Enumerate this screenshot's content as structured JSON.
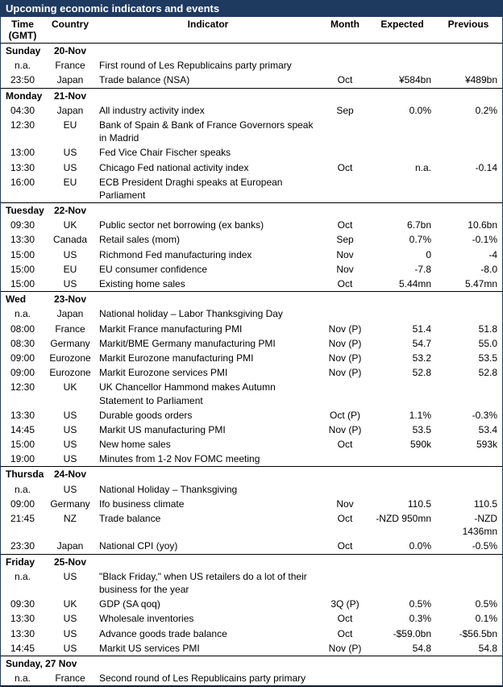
{
  "title": "Upcoming economic indicators and events",
  "columns": {
    "time": "Time (GMT)",
    "country": "Country",
    "indicator": "Indicator",
    "month": "Month",
    "expected": "Expected",
    "previous": "Previous"
  },
  "days": [
    {
      "day_label": "Sunday",
      "date_label": "20-Nov",
      "rows": [
        {
          "time": "n.a.",
          "country": "France",
          "indicator": "First round of Les Republicains party primary",
          "month": "",
          "expected": "",
          "previous": ""
        },
        {
          "time": "23:50",
          "country": "Japan",
          "indicator": "Trade balance (NSA)",
          "month": "Oct",
          "expected": "¥584bn",
          "previous": "¥489bn"
        }
      ]
    },
    {
      "day_label": "Monday",
      "date_label": "21-Nov",
      "rows": [
        {
          "time": "04:30",
          "country": "Japan",
          "indicator": "All industry activity index",
          "month": "Sep",
          "expected": "0.0%",
          "previous": "0.2%"
        },
        {
          "time": "12:30",
          "country": "EU",
          "indicator": "Bank of Spain & Bank of France Governors speak in Madrid",
          "month": "",
          "expected": "",
          "previous": ""
        },
        {
          "time": "13:00",
          "country": "US",
          "indicator": "Fed Vice Chair Fischer speaks",
          "month": "",
          "expected": "",
          "previous": ""
        },
        {
          "time": "13:30",
          "country": "US",
          "indicator": "Chicago Fed national activity index",
          "month": "Oct",
          "expected": "n.a.",
          "previous": "-0.14"
        },
        {
          "time": "16:00",
          "country": "EU",
          "indicator": "ECB President Draghi speaks at European Parliament",
          "month": "",
          "expected": "",
          "previous": ""
        }
      ]
    },
    {
      "day_label": "Tuesday",
      "date_label": "22-Nov",
      "rows": [
        {
          "time": "09:30",
          "country": "UK",
          "indicator": "Public sector net borrowing (ex banks)",
          "month": "Oct",
          "expected": "6.7bn",
          "previous": "10.6bn"
        },
        {
          "time": "13:30",
          "country": "Canada",
          "indicator": "Retail sales (mom)",
          "month": "Sep",
          "expected": "0.7%",
          "previous": "-0.1%"
        },
        {
          "time": "15:00",
          "country": "US",
          "indicator": "Richmond Fed manufacturing index",
          "month": "Nov",
          "expected": "0",
          "previous": "-4"
        },
        {
          "time": "15:00",
          "country": "EU",
          "indicator": "EU consumer confidence",
          "month": "Nov",
          "expected": "-7.8",
          "previous": "-8.0"
        },
        {
          "time": "15:00",
          "country": "US",
          "indicator": "Existing home sales",
          "month": "Oct",
          "expected": "5.44mn",
          "previous": "5.47mn"
        }
      ]
    },
    {
      "day_label": "Wed",
      "date_label": "23-Nov",
      "rows": [
        {
          "time": "n.a.",
          "country": "Japan",
          "indicator": "National holiday – Labor Thanksgiving Day",
          "month": "",
          "expected": "",
          "previous": ""
        },
        {
          "time": "08:00",
          "country": "France",
          "indicator": "Markit France manufacturing PMI",
          "month": "Nov (P)",
          "expected": "51.4",
          "previous": "51.8"
        },
        {
          "time": "08:30",
          "country": "Germany",
          "indicator": "Markit/BME Germany manufacturing PMI",
          "month": "Nov (P)",
          "expected": "54.7",
          "previous": "55.0"
        },
        {
          "time": "09:00",
          "country": "Eurozone",
          "indicator": "Markit Eurozone manufacturing PMI",
          "month": "Nov (P)",
          "expected": "53.2",
          "previous": "53.5"
        },
        {
          "time": "09:00",
          "country": "Eurozone",
          "indicator": "Markit Eurozone services PMI",
          "month": "Nov (P)",
          "expected": "52.8",
          "previous": "52.8"
        },
        {
          "time": "12:30",
          "country": "UK",
          "indicator": "UK Chancellor Hammond makes Autumn Statement to Parliament",
          "month": "",
          "expected": "",
          "previous": ""
        },
        {
          "time": "13:30",
          "country": "US",
          "indicator": "Durable goods orders",
          "month": "Oct (P)",
          "expected": "1.1%",
          "previous": "-0.3%"
        },
        {
          "time": "14:45",
          "country": "US",
          "indicator": "Markit US manufacturing PMI",
          "month": "Nov (P)",
          "expected": "53.5",
          "previous": "53.4"
        },
        {
          "time": "15:00",
          "country": "US",
          "indicator": "New home sales",
          "month": "Oct",
          "expected": "590k",
          "previous": "593k"
        },
        {
          "time": "19:00",
          "country": "US",
          "indicator": "Minutes from 1-2 Nov FOMC meeting",
          "month": "",
          "expected": "",
          "previous": ""
        }
      ]
    },
    {
      "day_label": "Thursday",
      "date_label": "24-Nov",
      "rows": [
        {
          "time": "n.a.",
          "country": "US",
          "indicator": "National Holiday – Thanksgiving",
          "month": "",
          "expected": "",
          "previous": ""
        },
        {
          "time": "09:00",
          "country": "Germany",
          "indicator": "Ifo business climate",
          "month": "Nov",
          "expected": "110.5",
          "previous": "110.5"
        },
        {
          "time": "21:45",
          "country": "NZ",
          "indicator": "Trade balance",
          "month": "Oct",
          "expected": "-NZD 950mn",
          "previous": "-NZD 1436mn"
        },
        {
          "time": "23:30",
          "country": "Japan",
          "indicator": "National CPI (yoy)",
          "month": "Oct",
          "expected": "0.0%",
          "previous": "-0.5%"
        }
      ]
    },
    {
      "day_label": "Friday",
      "date_label": "25-Nov",
      "rows": [
        {
          "time": "n.a.",
          "country": "US",
          "indicator": "\"Black Friday,\" when US retailers do a lot of their business for the year",
          "month": "",
          "expected": "",
          "previous": ""
        },
        {
          "time": "09:30",
          "country": "UK",
          "indicator": "GDP (SA qoq)",
          "month": "3Q (P)",
          "expected": "0.5%",
          "previous": "0.5%"
        },
        {
          "time": "13:30",
          "country": "US",
          "indicator": "Wholesale inventories",
          "month": "Oct",
          "expected": "0.3%",
          "previous": "0.1%"
        },
        {
          "time": "13:30",
          "country": "US",
          "indicator": "Advance goods trade balance",
          "month": "Oct",
          "expected": "-$59.0bn",
          "previous": "-$56.5bn"
        },
        {
          "time": "14:45",
          "country": "US",
          "indicator": "Markit US services PMI",
          "month": "Nov (P)",
          "expected": "54.8",
          "previous": "54.8"
        }
      ]
    },
    {
      "day_label": "Sunday, 27 Nov",
      "date_label": "",
      "rows": [
        {
          "time": "n.a.",
          "country": "France",
          "indicator": "Second round of Les Republicains party primary",
          "month": "",
          "expected": "",
          "previous": ""
        }
      ]
    }
  ]
}
